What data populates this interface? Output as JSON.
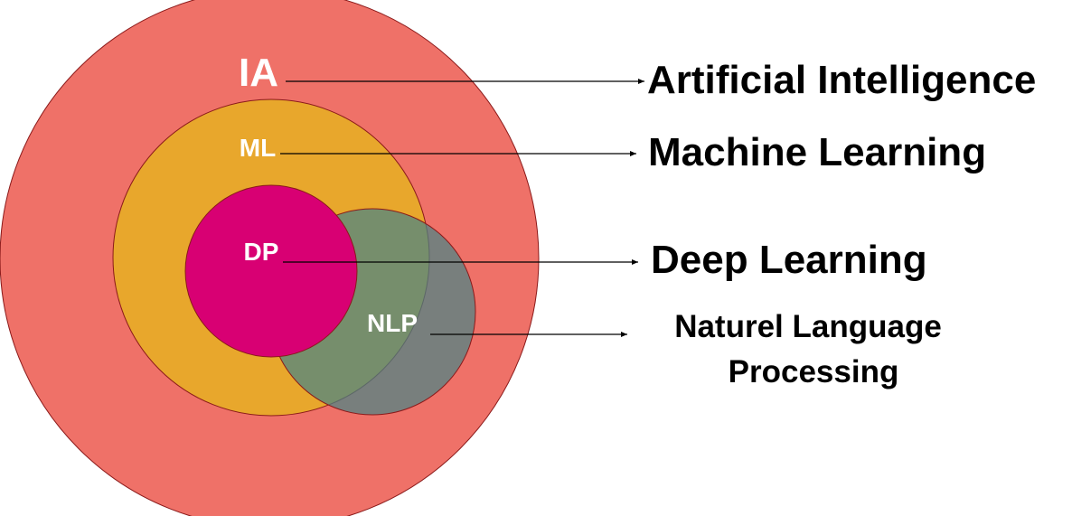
{
  "diagram": {
    "regions": [
      {
        "id": "ia",
        "abbr": "IA",
        "description": "Artificial Intelligence",
        "color": "#EF7168"
      },
      {
        "id": "ml",
        "abbr": "ML",
        "description": "Machine Learning",
        "color": "#E8A72C"
      },
      {
        "id": "nlp",
        "abbr": "NLP",
        "description_line1": "Naturel Language",
        "description_line2": "Processing",
        "color": "#5E8889"
      },
      {
        "id": "dp",
        "abbr": "DP",
        "description": "Deep Learning",
        "color": "#D80073"
      }
    ],
    "colors": {
      "background": "#FFFFFF",
      "circle_outline": "#8B1A1A",
      "label_text": "#FFFFFF",
      "description_text": "#000000",
      "arrow": "#000000"
    }
  }
}
